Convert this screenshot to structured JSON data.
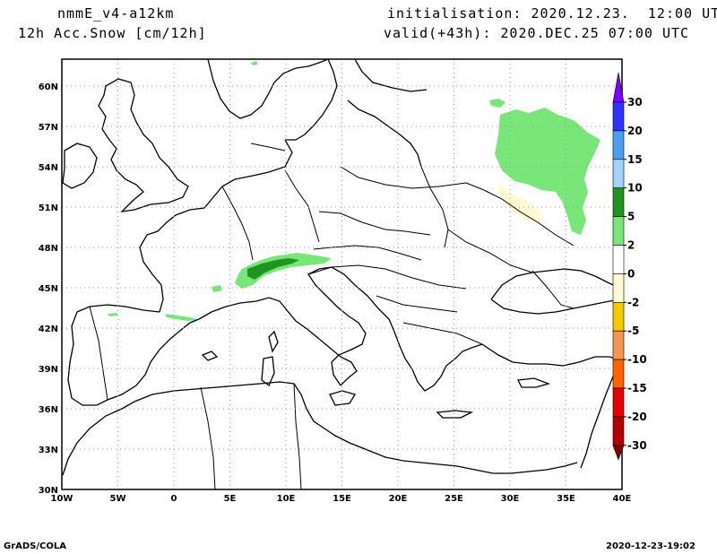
{
  "header": {
    "model": "nmmE_v4-a12km",
    "product": "12h Acc.Snow [cm/12h]",
    "initialisation": "initialisation: 2020.12.23.  12:00 UTC",
    "valid": "valid(+43h): 2020.DEC.25 07:00 UTC"
  },
  "footer": {
    "software": "GrADS/COLA",
    "timestamp": "2020-12-23-19:02"
  },
  "map": {
    "projection": "latlon",
    "lon_range": [
      -10,
      40
    ],
    "lat_range": [
      30,
      62
    ],
    "lon_ticks": [
      "10W",
      "5W",
      "0",
      "5E",
      "10E",
      "15E",
      "20E",
      "25E",
      "30E",
      "35E",
      "40E"
    ],
    "lat_ticks": [
      "60N",
      "57N",
      "54N",
      "51N",
      "48N",
      "45N",
      "42N",
      "39N",
      "36N",
      "33N",
      "30N"
    ],
    "grid": "dotted"
  },
  "colorbar": {
    "labels": [
      "30",
      "20",
      "15",
      "10",
      "5",
      "2",
      "0",
      "-2",
      "-5",
      "-10",
      "-15",
      "-20",
      "-30"
    ],
    "colors": [
      "#7F00FF",
      "#3232FF",
      "#4AA0F0",
      "#A0D2FA",
      "#1E961E",
      "#78E678",
      "#FFFFFF",
      "#FFFAD2",
      "#F5C800",
      "#F59650",
      "#FF6400",
      "#E60000",
      "#B40000",
      "#820000"
    ]
  },
  "snow_colors": {
    "light_green": "#78E678",
    "dark_green": "#1E961E",
    "pale_yellow": "#FFFAD2"
  }
}
